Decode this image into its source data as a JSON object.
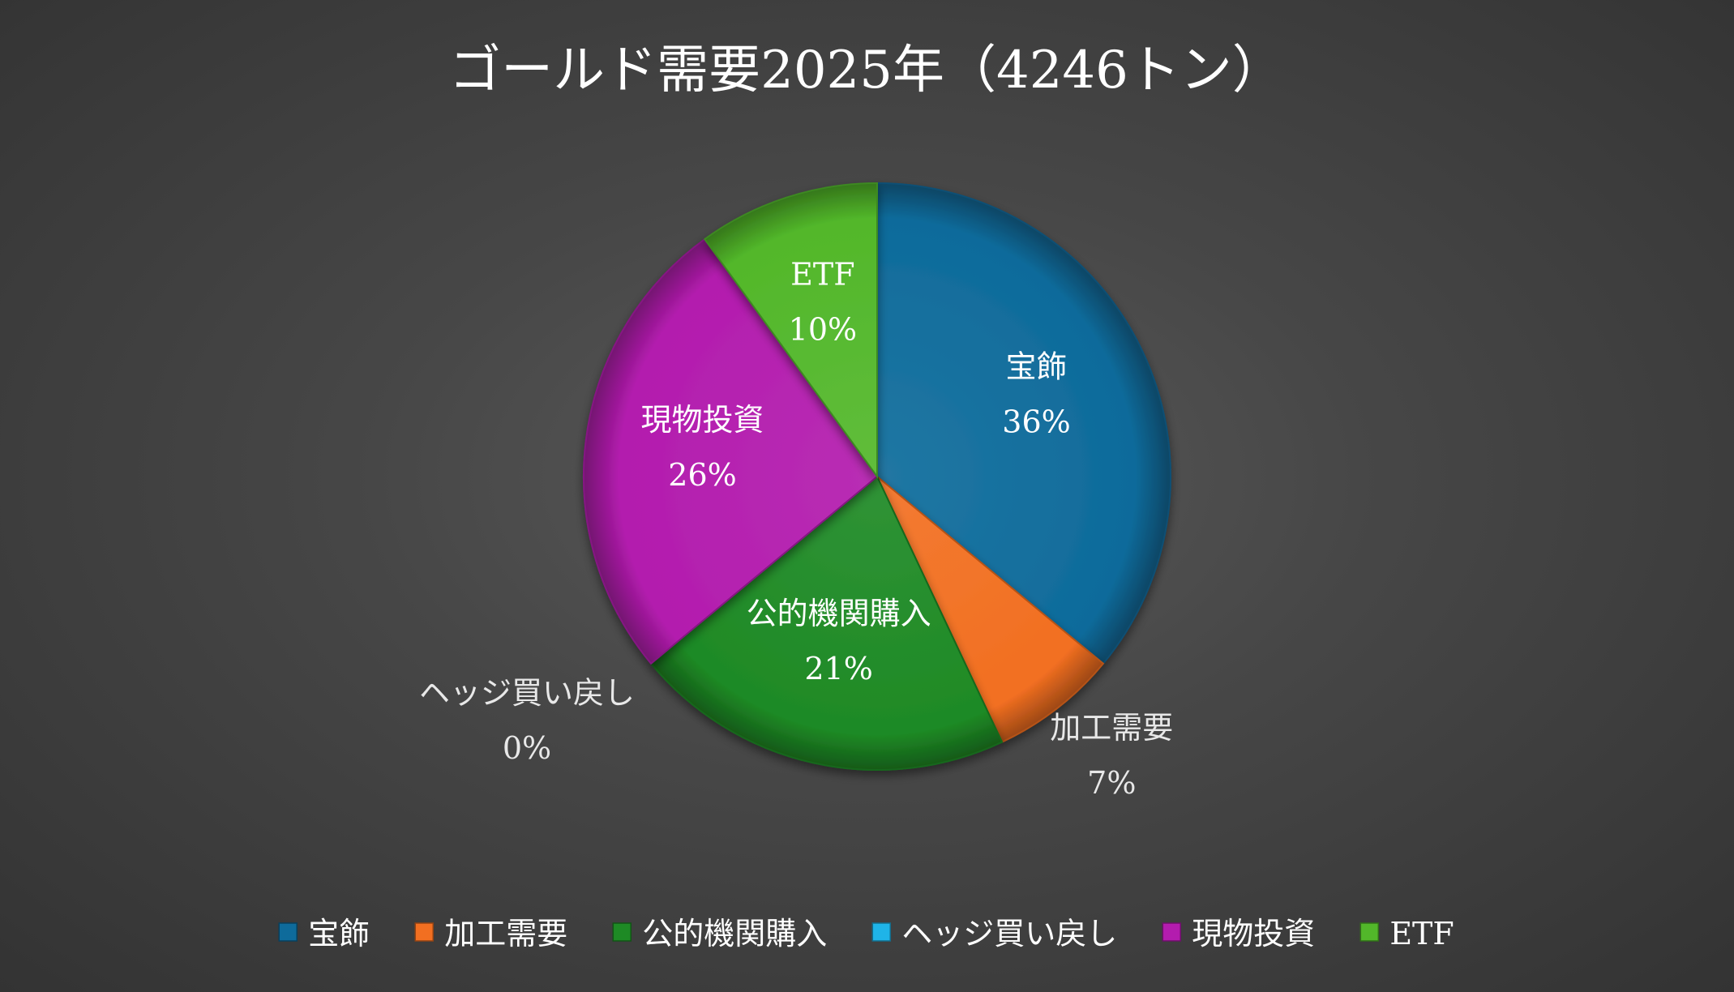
{
  "chart_data": {
    "type": "pie",
    "title": "ゴールド需要2025年（4246トン）",
    "slices": [
      {
        "label": "宝飾",
        "value": 36,
        "value_label": "36%",
        "color": "#0e6b9b"
      },
      {
        "label": "加工需要",
        "value": 7,
        "value_label": "7%",
        "color": "#f26f21"
      },
      {
        "label": "公的機関購入",
        "value": 21,
        "value_label": "21%",
        "color": "#1e8a25"
      },
      {
        "label": "ヘッジ買い戻し",
        "value": 0,
        "value_label": "0%",
        "color": "#1fb4e8"
      },
      {
        "label": "現物投資",
        "value": 26,
        "value_label": "26%",
        "color": "#b31cae"
      },
      {
        "label": "ETF",
        "value": 10,
        "value_label": "10%",
        "color": "#52b72a"
      }
    ],
    "legend_position": "bottom",
    "start_angle": "top, clockwise"
  }
}
